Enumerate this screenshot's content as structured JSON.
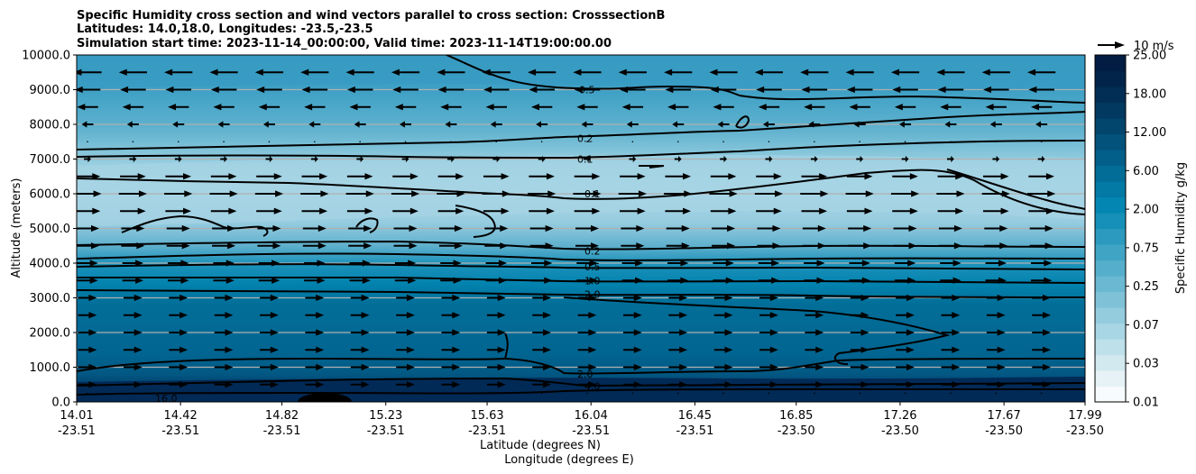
{
  "chart_data": {
    "type": "heatmap",
    "title_lines": [
      "Specific Humidity cross section and wind vectors parallel to cross section: CrosssectionB",
      "Latitudes: 14.0,18.0, Longitudes: -23.5,-23.5",
      "Simulation start time: 2023-11-14_00:00:00, Valid time: 2023-11-14T19:00:00.00"
    ],
    "xlabel_lat": "Latitude (degrees N)",
    "xlabel_lon": "Longitude (degrees E)",
    "ylabel": "Altitude (meters)",
    "ylim": [
      0,
      10000
    ],
    "y_ticks": [
      "0.0",
      "1000.0",
      "2000.0",
      "3000.0",
      "4000.0",
      "5000.0",
      "6000.0",
      "7000.0",
      "8000.0",
      "9000.0",
      "10000.0"
    ],
    "y_tick_values": [
      0,
      1000,
      2000,
      3000,
      4000,
      5000,
      6000,
      7000,
      8000,
      9000,
      10000
    ],
    "x_ticks_lat": [
      "14.01",
      "14.42",
      "14.82",
      "15.23",
      "15.63",
      "16.04",
      "16.45",
      "16.85",
      "17.26",
      "17.67",
      "17.99"
    ],
    "x_ticks_lon": [
      "-23.51",
      "-23.51",
      "-23.51",
      "-23.51",
      "-23.51",
      "-23.51",
      "-23.51",
      "-23.50",
      "-23.50",
      "-23.50",
      "-23.50"
    ],
    "x_tick_values": [
      14.01,
      14.42,
      14.82,
      15.23,
      15.63,
      16.04,
      16.45,
      16.85,
      17.26,
      17.67,
      17.99
    ],
    "xlim": [
      14.01,
      17.99
    ],
    "grid": "horizontal",
    "colorbar": {
      "label": "Specific Humidity g/kg",
      "ticks": [
        "0.01",
        "0.03",
        "0.07",
        "0.25",
        "0.75",
        "2.00",
        "6.00",
        "12.00",
        "18.00",
        "25.00"
      ],
      "colors": [
        "#f7fbfd",
        "#e6f2f6",
        "#d2e9f0",
        "#bde0ea",
        "#a8d6e4",
        "#94ccde",
        "#7fc2d8",
        "#6ab8d1",
        "#55aecb",
        "#40a4c5",
        "#2b9abe",
        "#1690b8",
        "#0486b2",
        "#027aa5",
        "#026d97",
        "#025f89",
        "#02527b",
        "#02456d",
        "#023960",
        "#022d54",
        "#02244a",
        "#021c42"
      ]
    },
    "quiver_key": {
      "label": "10 m/s",
      "speed": 10
    },
    "contour_levels": [
      {
        "label": "0.5",
        "altitude": 9000
      },
      {
        "label": "0.2",
        "altitude": 7600
      },
      {
        "label": "0.1",
        "altitude": 7000
      },
      {
        "label": "0.1",
        "altitude": 6000
      },
      {
        "label": "0.2",
        "altitude": 4350
      },
      {
        "label": "0.5",
        "altitude": 3900
      },
      {
        "label": "1.0",
        "altitude": 3500
      },
      {
        "label": "2.0",
        "altitude": 3100
      },
      {
        "label": "2.0",
        "altitude": 800
      },
      {
        "label": "4.0",
        "altitude": 450
      },
      {
        "label": "16.0",
        "altitude": 100
      }
    ],
    "wind_profile": [
      {
        "altitude": 250,
        "u": 0
      },
      {
        "altitude": 500,
        "u": 8
      },
      {
        "altitude": 1000,
        "u": 8
      },
      {
        "altitude": 1500,
        "u": 8
      },
      {
        "altitude": 2000,
        "u": 8
      },
      {
        "altitude": 2500,
        "u": 8
      },
      {
        "altitude": 3000,
        "u": 8
      },
      {
        "altitude": 3500,
        "u": 9
      },
      {
        "altitude": 4000,
        "u": 9
      },
      {
        "altitude": 4500,
        "u": 10
      },
      {
        "altitude": 5000,
        "u": 10
      },
      {
        "altitude": 5500,
        "u": 11
      },
      {
        "altitude": 6000,
        "u": 12
      },
      {
        "altitude": 6500,
        "u": 11
      },
      {
        "altitude": 7000,
        "u": 3
      },
      {
        "altitude": 7500,
        "u": 0
      },
      {
        "altitude": 8000,
        "u": -5
      },
      {
        "altitude": 8500,
        "u": -9
      },
      {
        "altitude": 9000,
        "u": -11
      },
      {
        "altitude": 9500,
        "u": -12
      }
    ]
  }
}
